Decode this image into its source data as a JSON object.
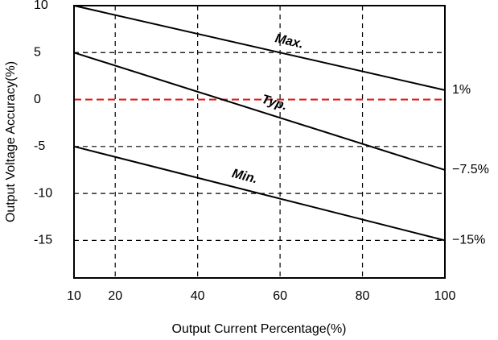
{
  "chart_data": {
    "type": "line",
    "x_label": "Output Current Percentage(%)",
    "y_label": "Output Voltage Accuracy(%)",
    "x": [
      10,
      100
    ],
    "series": [
      {
        "name": "Max.",
        "color": "#000000",
        "values": [
          10,
          1
        ],
        "value_labels": [
          null,
          "1%"
        ]
      },
      {
        "name": "Typ.",
        "color": "#000000",
        "values": [
          5,
          -7.5
        ],
        "value_labels": [
          null,
          "−7.5%"
        ]
      },
      {
        "name": "Min.",
        "color": "#000000",
        "values": [
          -5,
          -15
        ],
        "value_labels": [
          null,
          "−15%"
        ]
      }
    ],
    "reference_line": {
      "value": 0,
      "color": "#e02020"
    },
    "xlim": [
      10,
      100
    ],
    "xticks": [
      10,
      20,
      40,
      60,
      80,
      100
    ],
    "ylim": [
      -19,
      10
    ],
    "yticks": [
      -15,
      -10,
      -5,
      0,
      5,
      10
    ],
    "grid": true
  }
}
